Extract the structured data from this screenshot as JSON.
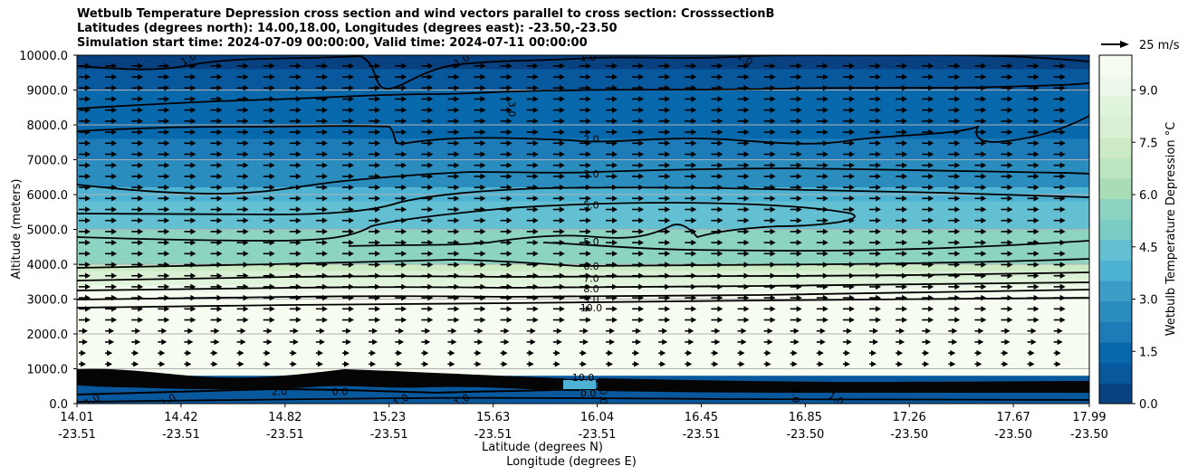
{
  "chart_data": {
    "type": "heatmap",
    "title_lines": [
      "Wetbulb Temperature Depression cross section and wind vectors parallel to cross section: CrosssectionB",
      "Latitudes (degrees north): 14.00,18.00, Longitudes (degrees east): -23.50,-23.50",
      "Simulation start time: 2024-07-09 00:00:00, Valid time: 2024-07-11 00:00:00"
    ],
    "ylabel": "Altitude (meters)",
    "xlabel_lat": "Latitude (degrees N)",
    "xlabel_lon": "Longitude (degrees E)",
    "ylim": [
      0,
      10000
    ],
    "yticks": [
      "0.0",
      "1000.0",
      "2000.0",
      "3000.0",
      "4000.0",
      "5000.0",
      "6000.0",
      "7000.0",
      "8000.0",
      "9000.0",
      "10000.0"
    ],
    "xticks": [
      {
        "lat": "14.01",
        "lon": "-23.51"
      },
      {
        "lat": "14.42",
        "lon": "-23.51"
      },
      {
        "lat": "14.82",
        "lon": "-23.51"
      },
      {
        "lat": "15.23",
        "lon": "-23.51"
      },
      {
        "lat": "15.63",
        "lon": "-23.51"
      },
      {
        "lat": "16.04",
        "lon": "-23.51"
      },
      {
        "lat": "16.45",
        "lon": "-23.51"
      },
      {
        "lat": "16.85",
        "lon": "-23.50"
      },
      {
        "lat": "17.26",
        "lon": "-23.50"
      },
      {
        "lat": "17.67",
        "lon": "-23.50"
      },
      {
        "lat": "17.99",
        "lon": "-23.50"
      }
    ],
    "colorbar": {
      "label": "Wetbulb Temperature Depression $^\\circ$C",
      "range": [
        0,
        10
      ],
      "ticks": [
        "0.0",
        "1.5",
        "3.0",
        "4.5",
        "6.0",
        "7.5",
        "9.0"
      ],
      "colors": [
        "#084080",
        "#08589e",
        "#0868ac",
        "#1d7bb7",
        "#2b8cbe",
        "#3b9dc8",
        "#4eb3d3",
        "#63c0d2",
        "#7bccc4",
        "#8dd3c2",
        "#a8ddb5",
        "#bde5c0",
        "#ccebc5",
        "#daf0d4",
        "#e0f3db",
        "#eef8ea",
        "#f7fcf0"
      ]
    },
    "wind_reference": "25 m/s",
    "bands_altitude_m": [
      {
        "top": 10000,
        "bottom": 9000,
        "value": 0.8
      },
      {
        "top": 9000,
        "bottom": 7000,
        "value": 1.6
      },
      {
        "top": 7000,
        "bottom": 6200,
        "value": 2.5
      },
      {
        "top": 6200,
        "bottom": 5000,
        "value": 4.2
      },
      {
        "top": 5000,
        "bottom": 4000,
        "value": 5.5
      },
      {
        "top": 4000,
        "bottom": 3000,
        "value": 8.0
      },
      {
        "top": 3000,
        "bottom": 800,
        "value": 10.0
      },
      {
        "top": 800,
        "bottom": 0,
        "value": 0.7
      }
    ],
    "contour_labels": [
      {
        "text": "1.0",
        "x_frac": 0.11,
        "alt": 9900,
        "rot": -30
      },
      {
        "text": "1.0",
        "x_frac": 0.38,
        "alt": 9850,
        "rot": -30
      },
      {
        "text": "1.0",
        "x_frac": 0.505,
        "alt": 9950,
        "rot": 0
      },
      {
        "text": "1.0",
        "x_frac": 0.66,
        "alt": 9900,
        "rot": 30
      },
      {
        "text": "3.0",
        "x_frac": 0.43,
        "alt": 8450,
        "rot": 90
      },
      {
        "text": "2.0",
        "x_frac": 0.508,
        "alt": 7600,
        "rot": 0
      },
      {
        "text": "3.0",
        "x_frac": 0.508,
        "alt": 6600,
        "rot": 0
      },
      {
        "text": "5.0",
        "x_frac": 0.508,
        "alt": 5700,
        "rot": 0
      },
      {
        "text": "5.0",
        "x_frac": 0.508,
        "alt": 4650,
        "rot": 0
      },
      {
        "text": "6.0",
        "x_frac": 0.508,
        "alt": 3950,
        "rot": 0
      },
      {
        "text": "7.0",
        "x_frac": 0.508,
        "alt": 3600,
        "rot": 0
      },
      {
        "text": "8.0",
        "x_frac": 0.508,
        "alt": 3300,
        "rot": 0
      },
      {
        "text": "9.0",
        "x_frac": 0.508,
        "alt": 3000,
        "rot": 0
      },
      {
        "text": "10.0",
        "x_frac": 0.508,
        "alt": 2750,
        "rot": 0
      },
      {
        "text": "10.0",
        "x_frac": 0.5,
        "alt": 750,
        "rot": 0
      },
      {
        "text": "2.0",
        "x_frac": 0.2,
        "alt": 350,
        "rot": 0
      },
      {
        "text": "0.0",
        "x_frac": 0.26,
        "alt": 350,
        "rot": 0
      },
      {
        "text": "1.0",
        "x_frac": 0.015,
        "alt": 100,
        "rot": -30
      },
      {
        "text": "1.0",
        "x_frac": 0.09,
        "alt": 100,
        "rot": -30
      },
      {
        "text": "1.0",
        "x_frac": 0.32,
        "alt": 100,
        "rot": -30
      },
      {
        "text": "1.0",
        "x_frac": 0.38,
        "alt": 100,
        "rot": -30
      },
      {
        "text": "0.0",
        "x_frac": 0.505,
        "alt": 300,
        "rot": 0
      },
      {
        "text": "0.0",
        "x_frac": 0.52,
        "alt": 200,
        "rot": 90
      },
      {
        "text": "0.0",
        "x_frac": 0.71,
        "alt": 250,
        "rot": 90
      },
      {
        "text": "1.0",
        "x_frac": 0.75,
        "alt": 150,
        "rot": 30
      }
    ]
  }
}
